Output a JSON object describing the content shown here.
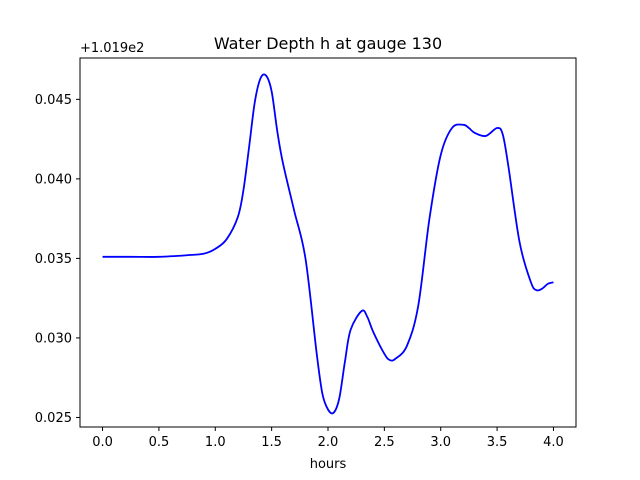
{
  "chart_data": {
    "type": "line",
    "title": "Water Depth h at gauge 130",
    "xlabel": "hours",
    "ylabel": "",
    "y_offset_label": "+1.019e2",
    "xlim": [
      -0.2,
      4.2
    ],
    "ylim": [
      0.0244,
      0.0476
    ],
    "x_ticks": [
      0.0,
      0.5,
      1.0,
      1.5,
      2.0,
      2.5,
      3.0,
      3.5,
      4.0
    ],
    "x_tick_labels": [
      "0.0",
      "0.5",
      "1.0",
      "1.5",
      "2.0",
      "2.5",
      "3.0",
      "3.5",
      "4.0"
    ],
    "y_ticks": [
      0.025,
      0.03,
      0.035,
      0.04,
      0.045
    ],
    "y_tick_labels": [
      "0.025",
      "0.030",
      "0.035",
      "0.040",
      "0.045"
    ],
    "grid": false,
    "series": [
      {
        "color": "#0000ff",
        "x": [
          0.0,
          0.25,
          0.5,
          0.75,
          0.9,
          1.0,
          1.1,
          1.2,
          1.25,
          1.3,
          1.35,
          1.4,
          1.45,
          1.5,
          1.55,
          1.6,
          1.7,
          1.8,
          1.9,
          1.95,
          2.0,
          2.05,
          2.1,
          2.15,
          2.2,
          2.3,
          2.35,
          2.4,
          2.5,
          2.55,
          2.6,
          2.7,
          2.8,
          2.9,
          3.0,
          3.1,
          3.2,
          3.25,
          3.3,
          3.4,
          3.5,
          3.55,
          3.6,
          3.7,
          3.8,
          3.85,
          3.9,
          3.95,
          4.0
        ],
        "values": [
          0.0351,
          0.0351,
          0.0351,
          0.0352,
          0.0353,
          0.0356,
          0.0362,
          0.0376,
          0.0393,
          0.042,
          0.0448,
          0.0463,
          0.0465,
          0.0455,
          0.043,
          0.041,
          0.038,
          0.035,
          0.029,
          0.0265,
          0.0255,
          0.0253,
          0.0262,
          0.0285,
          0.0305,
          0.0317,
          0.0313,
          0.0304,
          0.029,
          0.0286,
          0.0287,
          0.0295,
          0.032,
          0.0375,
          0.0415,
          0.0432,
          0.0434,
          0.0432,
          0.0429,
          0.0427,
          0.0432,
          0.0428,
          0.0408,
          0.036,
          0.0335,
          0.033,
          0.0331,
          0.0334,
          0.0335
        ]
      }
    ]
  }
}
